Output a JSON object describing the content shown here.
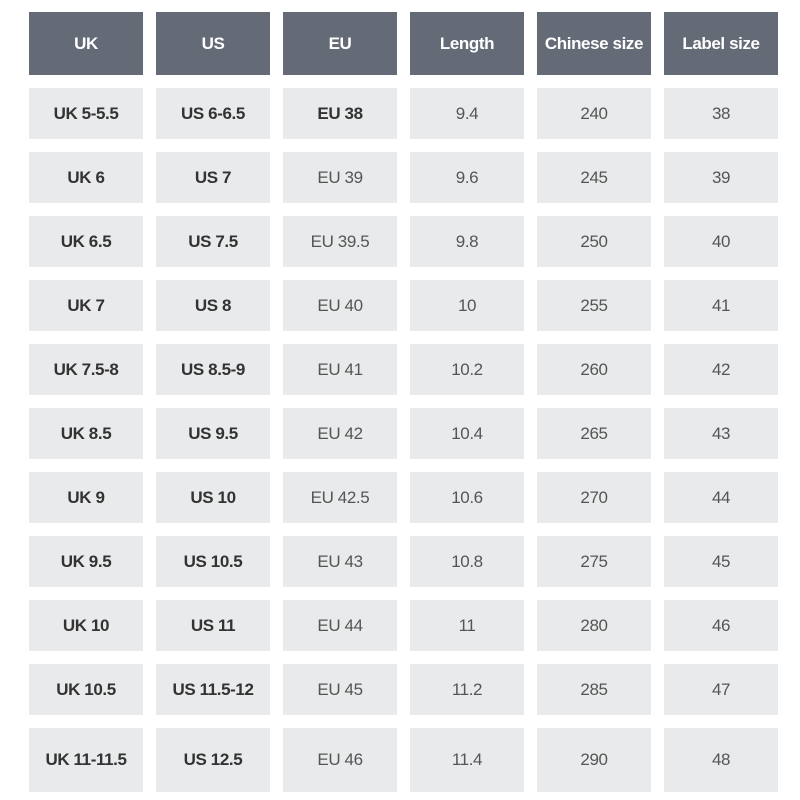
{
  "table": {
    "header": [
      "UK",
      "US",
      "EU",
      "Length",
      "Chinese size",
      "Label size"
    ],
    "rows": [
      [
        "UK 5-5.5",
        "US 6-6.5",
        "EU 38",
        "9.4",
        "240",
        "38"
      ],
      [
        "UK 6",
        "US 7",
        "EU 39",
        "9.6",
        "245",
        "39"
      ],
      [
        "UK 6.5",
        "US 7.5",
        "EU 39.5",
        "9.8",
        "250",
        "40"
      ],
      [
        "UK 7",
        "US 8",
        "EU 40",
        "10",
        "255",
        "41"
      ],
      [
        "UK 7.5-8",
        "US 8.5-9",
        "EU 41",
        "10.2",
        "260",
        "42"
      ],
      [
        "UK 8.5",
        "US 9.5",
        "EU 42",
        "10.4",
        "265",
        "43"
      ],
      [
        "UK 9",
        "US 10",
        "EU 42.5",
        "10.6",
        "270",
        "44"
      ],
      [
        "UK 9.5",
        "US 10.5",
        "EU 43",
        "10.8",
        "275",
        "45"
      ],
      [
        "UK 10",
        "US 11",
        "EU 44",
        "11",
        "280",
        "46"
      ],
      [
        "UK 10.5",
        "US 11.5-12",
        "EU 45",
        "11.2",
        "285",
        "47"
      ],
      [
        "UK 11-11.5",
        "US 12.5",
        "EU 46",
        "11.4",
        "290",
        "48"
      ]
    ]
  }
}
